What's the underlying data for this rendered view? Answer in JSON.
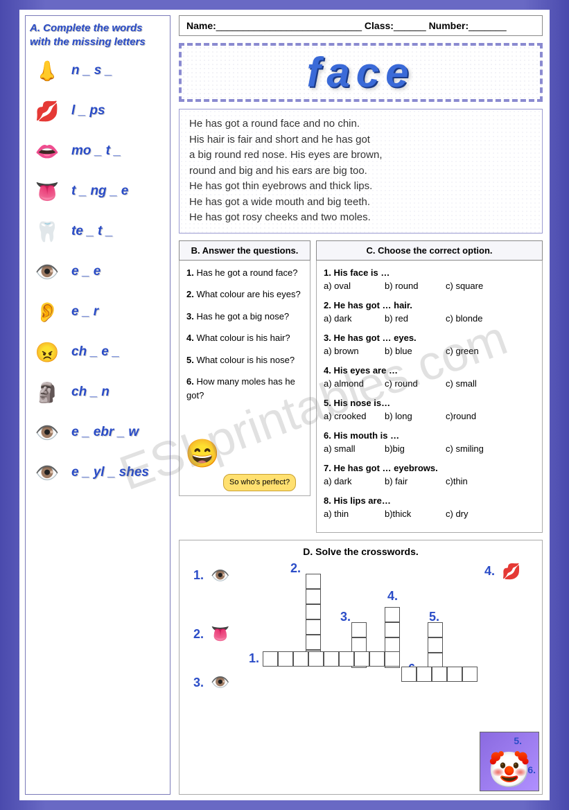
{
  "watermark": "ESLprintables.com",
  "header": {
    "name_label": "Name:",
    "class_label": "Class:",
    "number_label": "Number:",
    "name_line": "___________________________",
    "class_line": "______",
    "number_line": "_______"
  },
  "title": "face",
  "sidebar": {
    "instruction": "A. Complete the words with the missing letters",
    "items": [
      {
        "icon": "👃",
        "word": "n _ s _"
      },
      {
        "icon": "💋",
        "word": "l _ ps"
      },
      {
        "icon": "👄",
        "word": "mo _ t _"
      },
      {
        "icon": "👅",
        "word": "t _ ng _ e"
      },
      {
        "icon": "🦷",
        "word": "te _ t _"
      },
      {
        "icon": "👁️",
        "word": "e _ e"
      },
      {
        "icon": "👂",
        "word": "e _ r"
      },
      {
        "icon": "😠",
        "word": "ch _ e _"
      },
      {
        "icon": "🗿",
        "word": "ch _ n"
      },
      {
        "icon": "👁️",
        "word": "e _ ebr _ w"
      },
      {
        "icon": "👁️",
        "word": "e _ yl _ shes"
      }
    ]
  },
  "reading": [
    "He has got a round face and no chin.",
    "His hair is fair and short and he has got",
    " a big round red nose. His eyes are brown,",
    "round and big and his ears are big too.",
    "He has got thin eyebrows and thick lips.",
    "He has got a wide mouth and big teeth.",
    "He has got rosy cheeks and two moles."
  ],
  "section_b": {
    "title": "B. Answer the questions.",
    "questions": [
      "1. Has he got a round face?",
      "2. What colour are his eyes?",
      "3. Has he got a big nose?",
      "4. What colour is his hair?",
      "5. What colour is his nose?",
      "6. How many moles has he got?"
    ],
    "speech": "So who's perfect?",
    "boy_icon": "😄"
  },
  "section_c": {
    "title": "C. Choose the correct option.",
    "items": [
      {
        "q": "1. His face is …",
        "opts": [
          "a) oval",
          "b) round",
          "c) square"
        ]
      },
      {
        "q": "2. He has got … hair.",
        "opts": [
          "a) dark",
          "b) red",
          "c) blonde"
        ]
      },
      {
        "q": "3. He has got … eyes.",
        "opts": [
          "a) brown",
          "b) blue",
          "c) green"
        ]
      },
      {
        "q": "4. His eyes are …",
        "opts": [
          "a) almond",
          "c) round",
          "c) small"
        ]
      },
      {
        "q": "5. His nose is…",
        "opts": [
          "a) crooked",
          "b) long",
          "c)round"
        ]
      },
      {
        "q": "6. His mouth is …",
        "opts": [
          "a) small",
          "b)big",
          "c) smiling"
        ]
      },
      {
        "q": "7. He has got … eyebrows.",
        "opts": [
          "a) dark",
          "b) fair",
          "c)thin"
        ]
      },
      {
        "q": "8. His lips are…",
        "opts": [
          "a) thin",
          "b)thick",
          "c) dry"
        ]
      }
    ]
  },
  "section_d": {
    "title": "D. Solve the crosswords.",
    "clue_nums": [
      "1.",
      "2.",
      "3.",
      "4.",
      "5.",
      "6."
    ],
    "clue_icons": {
      "1a": "👁️",
      "2a": "👅",
      "3a": "👁️",
      "4a": "💋"
    },
    "clown_icon": "🤡"
  },
  "colors": {
    "brand_blue": "#2a4cc7",
    "border_purple": "#8a8ad0",
    "bg_gradient_dark": "#4a4aad",
    "bg_gradient_light": "#6969c4"
  }
}
